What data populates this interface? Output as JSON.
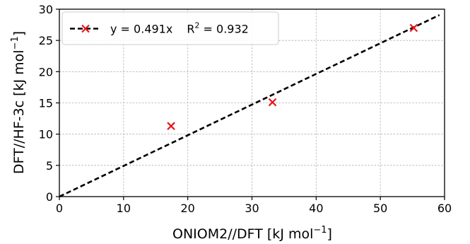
{
  "chart_data": {
    "type": "scatter",
    "xlabel": "ONIOM2//DFT [kJ mol",
    "xlabel_sup": "−1",
    "xlabel_end": "]",
    "ylabel": "DFT//HF-3c [kJ mol",
    "ylabel_sup": "−1",
    "ylabel_end": "]",
    "xlim": [
      0,
      60
    ],
    "ylim": [
      0,
      30
    ],
    "xticks": [
      0,
      10,
      20,
      30,
      40,
      50,
      60
    ],
    "yticks": [
      0,
      5,
      10,
      15,
      20,
      25,
      30
    ],
    "grid": true,
    "legend_position": "top-left",
    "series": [
      {
        "marker": "x",
        "color": "#e8141a",
        "points": [
          {
            "x": 17.4,
            "y": 11.3
          },
          {
            "x": 33.2,
            "y": 15.1
          },
          {
            "x": 55.2,
            "y": 27.0
          }
        ]
      }
    ],
    "fit_line": {
      "slope": 0.491,
      "x_range": [
        0,
        59.2
      ],
      "color": "#000000",
      "style": "dashed"
    },
    "legend": {
      "fit_text": "y = 0.491x",
      "r2_prefix": "R",
      "r2_sup": "2",
      "r2_value": " = 0.932"
    }
  }
}
